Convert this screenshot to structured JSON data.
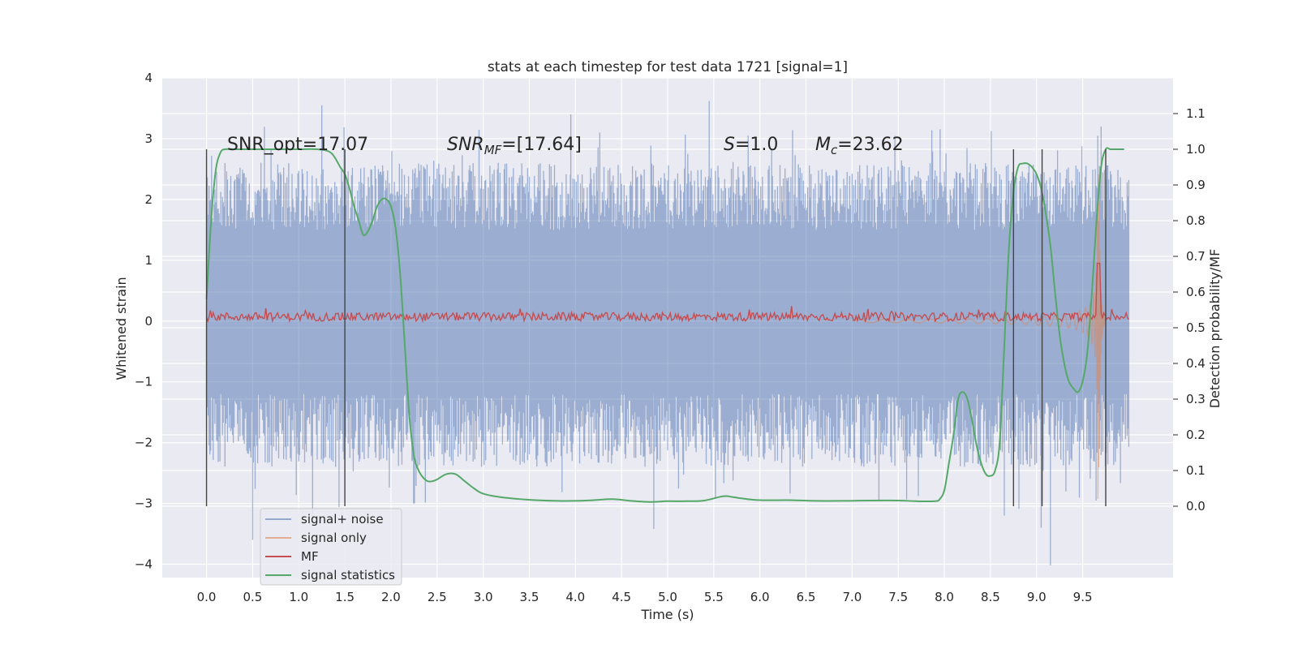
{
  "chart_data": {
    "type": "line",
    "title": "stats at each timestep for test data 1721 [signal=1]",
    "xlabel": "Time (s)",
    "ylabel": "Whitened strain",
    "y2label": "Detection probability/MF",
    "xlim": [
      -0.48,
      10.48
    ],
    "ylim": [
      -4.22,
      4.0
    ],
    "y2lim": [
      -0.2,
      1.2
    ],
    "x_ticks": [
      "0.0",
      "0.5",
      "1.0",
      "1.5",
      "2.0",
      "2.5",
      "3.0",
      "3.5",
      "4.0",
      "4.5",
      "5.0",
      "5.5",
      "6.0",
      "6.5",
      "7.0",
      "7.5",
      "8.0",
      "8.5",
      "9.0",
      "9.5"
    ],
    "y_ticks": [
      "4",
      "3",
      "2",
      "1",
      "0",
      "−1",
      "−2",
      "−3",
      "−4"
    ],
    "y2_ticks": [
      "1.1",
      "1.0",
      "0.9",
      "0.8",
      "0.7",
      "0.6",
      "0.5",
      "0.4",
      "0.3",
      "0.2",
      "0.1",
      "0.0"
    ],
    "grid": true,
    "legend_position": "lower-left",
    "colors": {
      "signal_noise": "#4c72b0",
      "signal_only": "#dd8452",
      "mf": "#c44e52",
      "statistics": "#55a868",
      "background": "#eaeaf2"
    },
    "annotations": {
      "snr_opt": "SNR_opt=17.07",
      "snr_mf_main": "SNR",
      "snr_mf_sub": "MF",
      "snr_mf_rest": "=[17.64]",
      "s_var": "S",
      "s_rest": "=1.0",
      "mc_var": "M",
      "mc_sub": "c",
      "mc_rest": "=23.62"
    },
    "vertical_lines_x": [
      0.0,
      1.5,
      8.75,
      9.06,
      9.75
    ],
    "series": [
      {
        "name": "signal+ noise",
        "style": "noise-band",
        "x_range": [
          0.0,
          10.0
        ],
        "envelope": {
          "upper_typical": 1.5,
          "lower_typical": -1.2
        },
        "spikes": [
          [
            1.25,
            3.55
          ],
          [
            3.95,
            3.4
          ],
          [
            5.45,
            3.62
          ],
          [
            9.7,
            3.2
          ],
          [
            9.15,
            -4.02
          ],
          [
            0.5,
            -3.6
          ],
          [
            4.85,
            -3.42
          ],
          [
            1.15,
            -3.3
          ],
          [
            9.05,
            -3.4
          ],
          [
            8.65,
            -3.2
          ]
        ]
      },
      {
        "name": "signal only",
        "style": "chirp",
        "x_range": [
          7.0,
          9.75
        ],
        "peak": 3.2,
        "trough": -3.45,
        "merger_x": 9.67
      },
      {
        "name": "MF",
        "style": "noisy-flat",
        "x_range": [
          0.0,
          10.0
        ],
        "level": 0.07,
        "peak": [
          9.67,
          0.95
        ]
      },
      {
        "name": "signal statistics",
        "x": [
          0.0,
          0.05,
          0.1,
          0.15,
          0.2,
          0.3,
          0.5,
          0.8,
          1.0,
          1.2,
          1.35,
          1.45,
          1.5,
          1.55,
          1.6,
          1.65,
          1.7,
          1.75,
          1.8,
          1.85,
          1.9,
          1.95,
          2.0,
          2.05,
          2.1,
          2.15,
          2.2,
          2.25,
          2.3,
          2.35,
          2.4,
          2.45,
          2.5,
          2.6,
          2.7,
          2.8,
          2.9,
          3.0,
          3.2,
          3.5,
          3.8,
          4.0,
          4.2,
          4.4,
          4.6,
          4.8,
          5.0,
          5.2,
          5.4,
          5.6,
          5.7,
          5.8,
          6.0,
          6.3,
          6.6,
          6.9,
          7.2,
          7.5,
          7.7,
          7.9,
          7.95,
          8.0,
          8.05,
          8.1,
          8.15,
          8.2,
          8.25,
          8.3,
          8.35,
          8.4,
          8.45,
          8.5,
          8.55,
          8.6,
          8.65,
          8.7,
          8.75,
          8.8,
          8.85,
          8.9,
          8.95,
          9.0,
          9.05,
          9.1,
          9.15,
          9.2,
          9.25,
          9.3,
          9.35,
          9.4,
          9.45,
          9.5,
          9.55,
          9.6,
          9.65,
          9.7,
          9.75,
          9.8,
          9.85,
          9.9,
          9.95
        ],
        "values": [
          0.58,
          0.8,
          0.94,
          0.99,
          1.0,
          1.0,
          1.0,
          1.0,
          1.0,
          1.0,
          0.99,
          0.95,
          0.93,
          0.89,
          0.84,
          0.8,
          0.76,
          0.77,
          0.8,
          0.84,
          0.86,
          0.86,
          0.84,
          0.78,
          0.65,
          0.45,
          0.25,
          0.14,
          0.1,
          0.08,
          0.07,
          0.07,
          0.075,
          0.09,
          0.09,
          0.07,
          0.05,
          0.035,
          0.025,
          0.018,
          0.015,
          0.015,
          0.017,
          0.02,
          0.015,
          0.012,
          0.014,
          0.014,
          0.016,
          0.028,
          0.026,
          0.022,
          0.017,
          0.017,
          0.015,
          0.015,
          0.016,
          0.016,
          0.014,
          0.014,
          0.02,
          0.045,
          0.12,
          0.2,
          0.3,
          0.32,
          0.3,
          0.24,
          0.17,
          0.12,
          0.09,
          0.085,
          0.1,
          0.18,
          0.45,
          0.72,
          0.88,
          0.95,
          0.96,
          0.96,
          0.95,
          0.93,
          0.89,
          0.82,
          0.73,
          0.6,
          0.48,
          0.4,
          0.35,
          0.33,
          0.32,
          0.35,
          0.43,
          0.6,
          0.8,
          0.95,
          1.0,
          1.0,
          1.0,
          1.0,
          1.0
        ]
      }
    ]
  }
}
